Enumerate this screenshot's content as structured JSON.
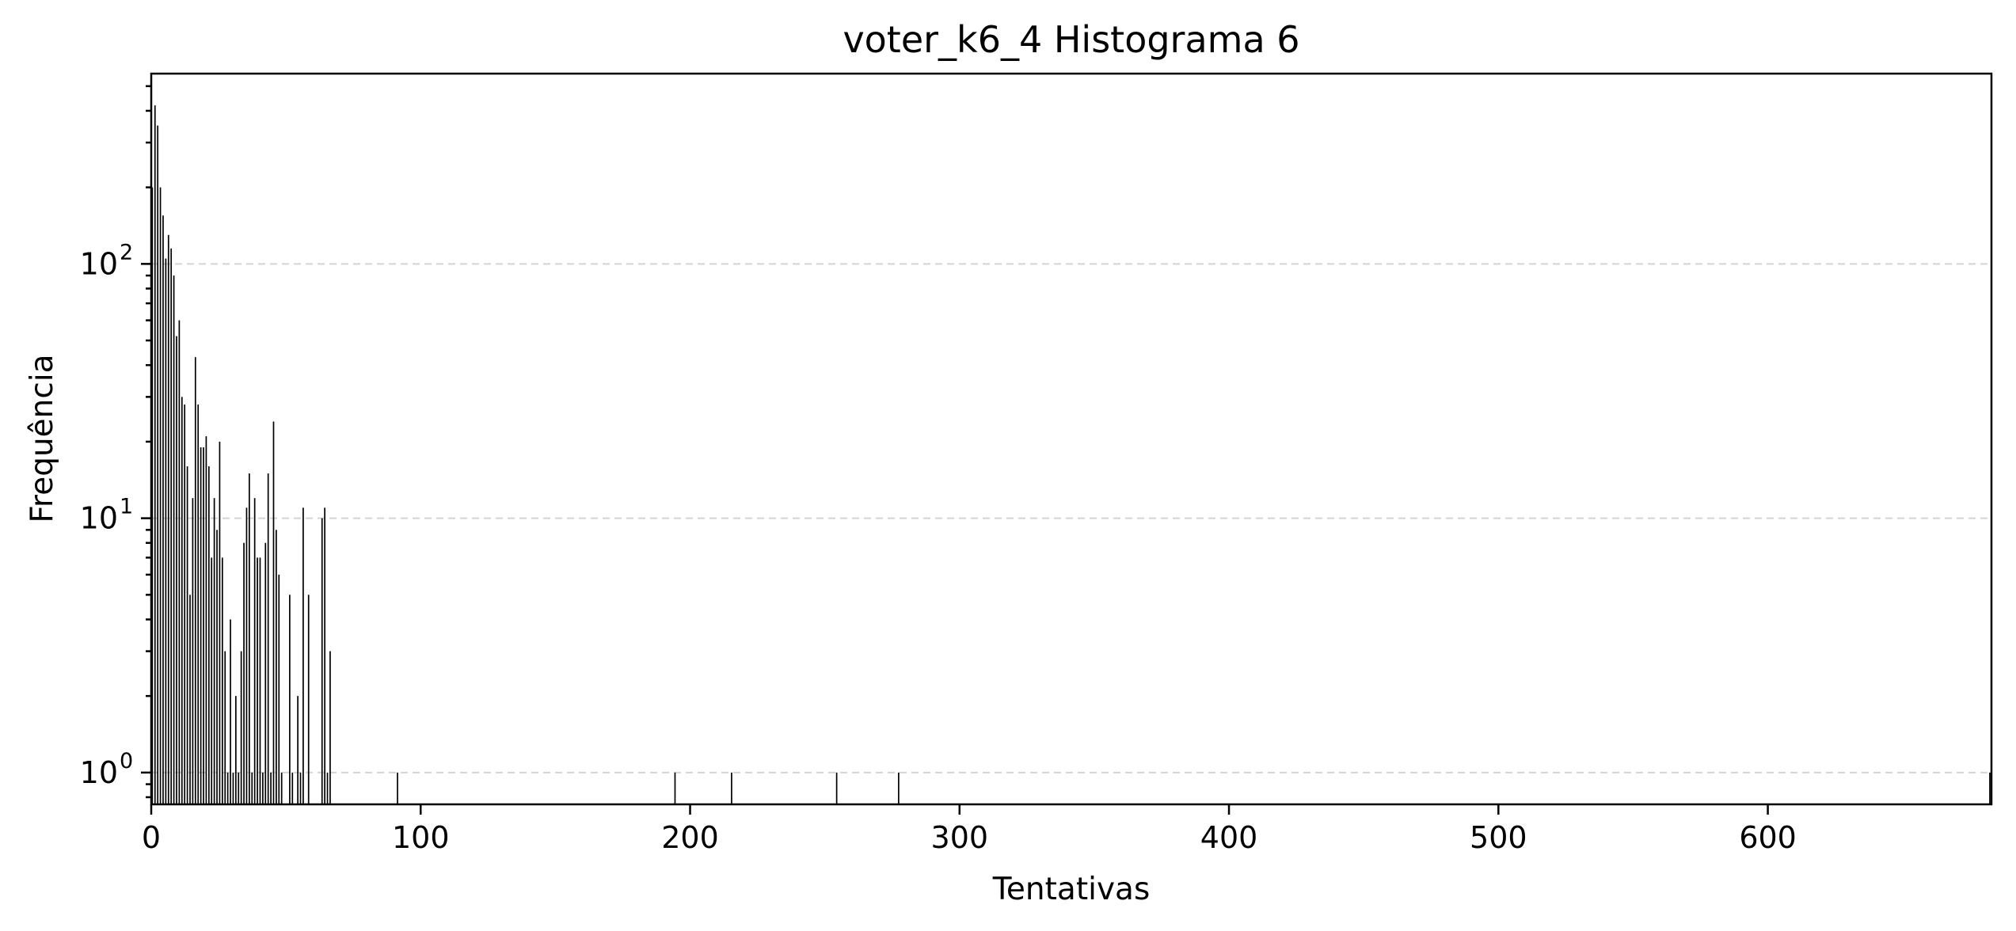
{
  "chart_data": {
    "type": "bar",
    "title": "voter_k6_4 Histograma 6",
    "xlabel": "Tentativas",
    "ylabel": "Frequência",
    "yscale": "log",
    "xlim": [
      0,
      683
    ],
    "ylim": [
      0.75,
      560
    ],
    "grid": "y-major-dashed",
    "bar_color": "#000000",
    "grid_color": "#d4d4d4",
    "xticks": [
      {
        "value": 0,
        "label": "0"
      },
      {
        "value": 100,
        "label": "100"
      },
      {
        "value": 200,
        "label": "200"
      },
      {
        "value": 300,
        "label": "300"
      },
      {
        "value": 400,
        "label": "400"
      },
      {
        "value": 500,
        "label": "500"
      },
      {
        "value": 600,
        "label": "600"
      }
    ],
    "yticks": [
      {
        "value": 1,
        "base": "10",
        "exp": "0"
      },
      {
        "value": 10,
        "base": "10",
        "exp": "1"
      },
      {
        "value": 100,
        "base": "10",
        "exp": "2"
      }
    ],
    "bars": [
      {
        "x": 0,
        "y": 200
      },
      {
        "x": 1,
        "y": 420
      },
      {
        "x": 2,
        "y": 350
      },
      {
        "x": 3,
        "y": 200
      },
      {
        "x": 4,
        "y": 155
      },
      {
        "x": 5,
        "y": 105
      },
      {
        "x": 6,
        "y": 130
      },
      {
        "x": 7,
        "y": 115
      },
      {
        "x": 8,
        "y": 90
      },
      {
        "x": 9,
        "y": 52
      },
      {
        "x": 10,
        "y": 60
      },
      {
        "x": 11,
        "y": 30
      },
      {
        "x": 12,
        "y": 28
      },
      {
        "x": 13,
        "y": 16
      },
      {
        "x": 14,
        "y": 5
      },
      {
        "x": 15,
        "y": 12
      },
      {
        "x": 16,
        "y": 43
      },
      {
        "x": 17,
        "y": 28
      },
      {
        "x": 18,
        "y": 19
      },
      {
        "x": 19,
        "y": 19
      },
      {
        "x": 20,
        "y": 21
      },
      {
        "x": 21,
        "y": 16
      },
      {
        "x": 22,
        "y": 7
      },
      {
        "x": 23,
        "y": 12
      },
      {
        "x": 24,
        "y": 9
      },
      {
        "x": 25,
        "y": 20
      },
      {
        "x": 26,
        "y": 7
      },
      {
        "x": 27,
        "y": 3
      },
      {
        "x": 28,
        "y": 1
      },
      {
        "x": 29,
        "y": 4
      },
      {
        "x": 30,
        "y": 1
      },
      {
        "x": 31,
        "y": 2
      },
      {
        "x": 32,
        "y": 1
      },
      {
        "x": 33,
        "y": 3
      },
      {
        "x": 34,
        "y": 8
      },
      {
        "x": 35,
        "y": 11
      },
      {
        "x": 36,
        "y": 15
      },
      {
        "x": 37,
        "y": 1
      },
      {
        "x": 38,
        "y": 12
      },
      {
        "x": 39,
        "y": 7
      },
      {
        "x": 40,
        "y": 7
      },
      {
        "x": 41,
        "y": 1
      },
      {
        "x": 42,
        "y": 8
      },
      {
        "x": 43,
        "y": 15
      },
      {
        "x": 44,
        "y": 1
      },
      {
        "x": 45,
        "y": 24
      },
      {
        "x": 46,
        "y": 9
      },
      {
        "x": 47,
        "y": 6
      },
      {
        "x": 48,
        "y": 1
      },
      {
        "x": 51,
        "y": 5
      },
      {
        "x": 52,
        "y": 1
      },
      {
        "x": 54,
        "y": 2
      },
      {
        "x": 55,
        "y": 1
      },
      {
        "x": 56,
        "y": 11
      },
      {
        "x": 58,
        "y": 5
      },
      {
        "x": 63,
        "y": 10
      },
      {
        "x": 64,
        "y": 11
      },
      {
        "x": 65,
        "y": 1
      },
      {
        "x": 66,
        "y": 3
      },
      {
        "x": 91,
        "y": 1
      },
      {
        "x": 194,
        "y": 1
      },
      {
        "x": 215,
        "y": 1
      },
      {
        "x": 254,
        "y": 1
      },
      {
        "x": 277,
        "y": 1
      },
      {
        "x": 682,
        "y": 1
      }
    ]
  }
}
